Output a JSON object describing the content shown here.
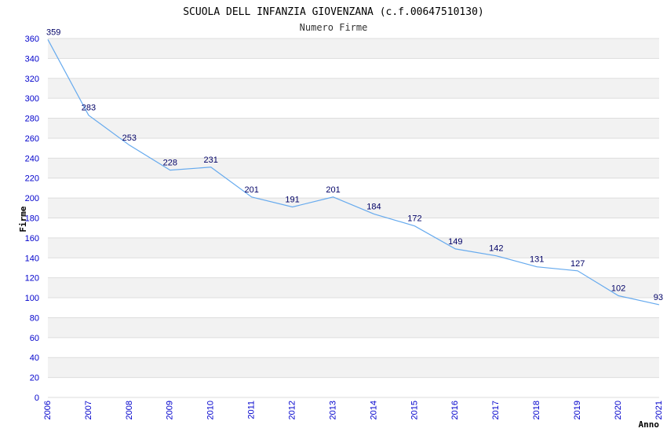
{
  "colors": {
    "band": "#f2f2f2",
    "gridline": "#dddddd",
    "line": "#66aaee",
    "axis_ticks": "#0000cc",
    "data_labels": "#000066"
  },
  "chart_data": {
    "type": "line",
    "title": "SCUOLA DELL INFANZIA GIOVENZANA (c.f.00647510130)",
    "subtitle": "Numero Firme",
    "xlabel": "Anno",
    "ylabel": "Firme",
    "ylim": [
      0,
      360
    ],
    "ytick_step": 20,
    "grid": true,
    "x": [
      "2006",
      "2007",
      "2008",
      "2009",
      "2010",
      "2011",
      "2012",
      "2013",
      "2014",
      "2015",
      "2016",
      "2017",
      "2018",
      "2019",
      "2020",
      "2021"
    ],
    "series": [
      {
        "values": [
          359,
          283,
          253,
          228,
          231,
          201,
          191,
          201,
          184,
          172,
          149,
          142,
          131,
          127,
          102,
          93
        ]
      }
    ]
  }
}
